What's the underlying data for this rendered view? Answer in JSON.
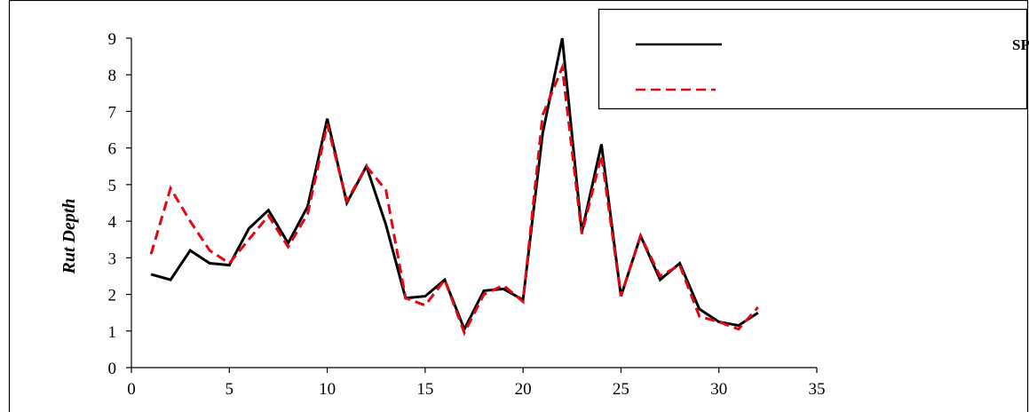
{
  "chart_data": {
    "type": "line",
    "ylabel": "Rut Depth",
    "xlim": [
      0,
      35
    ],
    "ylim": [
      0,
      9
    ],
    "xticks": [
      "0",
      "5",
      "10",
      "15",
      "20",
      "25",
      "30",
      "35"
    ],
    "yticks": [
      "0",
      "1",
      "2",
      "3",
      "4",
      "5",
      "6",
      "7",
      "8",
      "9"
    ],
    "grid": false,
    "legend_position": "top-right",
    "series": [
      {
        "name": "عمق شیار حاصل از نرم افزار SPSS",
        "color": "#000000",
        "style": "solid",
        "x": [
          1,
          2,
          3,
          4,
          5,
          6,
          7,
          8,
          9,
          10,
          11,
          12,
          13,
          14,
          15,
          16,
          17,
          18,
          19,
          20,
          21,
          22,
          23,
          24,
          25,
          26,
          27,
          28,
          29,
          30,
          31,
          32
        ],
        "y": [
          2.55,
          2.4,
          3.2,
          2.85,
          2.8,
          3.8,
          4.3,
          3.4,
          4.4,
          6.8,
          4.5,
          5.5,
          3.9,
          1.9,
          1.95,
          2.4,
          1.05,
          2.1,
          2.15,
          1.85,
          6.4,
          9.0,
          3.7,
          6.1,
          1.95,
          3.6,
          2.4,
          2.85,
          1.6,
          1.25,
          1.15,
          1.5
        ]
      },
      {
        "name": "",
        "color": "#e30613",
        "style": "dashed",
        "x": [
          1,
          2,
          3,
          4,
          5,
          6,
          7,
          8,
          9,
          10,
          11,
          12,
          13,
          14,
          15,
          16,
          17,
          18,
          19,
          20,
          21,
          22,
          23,
          24,
          25,
          26,
          27,
          28,
          29,
          30,
          31,
          32
        ],
        "y": [
          3.1,
          4.9,
          4.0,
          3.2,
          2.85,
          3.5,
          4.15,
          3.3,
          4.2,
          6.65,
          4.55,
          5.5,
          4.85,
          1.9,
          1.7,
          2.4,
          0.95,
          2.0,
          2.25,
          1.8,
          6.9,
          8.2,
          3.65,
          5.8,
          1.95,
          3.6,
          2.5,
          2.8,
          1.4,
          1.25,
          1.05,
          1.65
        ]
      }
    ]
  }
}
